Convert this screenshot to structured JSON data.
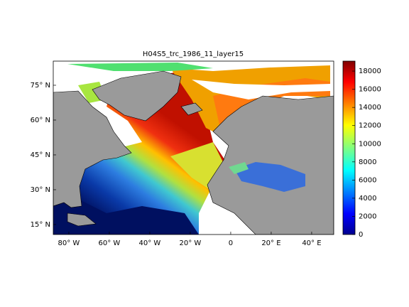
{
  "chart_data": {
    "type": "map",
    "title": "H04S5_trc_1986_11_layer15",
    "xlim": [
      -87.7,
      50.9
    ],
    "xticks": [
      {
        "value": -80,
        "label": "80° W"
      },
      {
        "value": -60,
        "label": "60° W"
      },
      {
        "value": -40,
        "label": "40° W"
      },
      {
        "value": -20,
        "label": "20° W"
      },
      0,
      {
        "value": 20,
        "label": "20° E"
      },
      {
        "value": 40,
        "label": "40° E"
      }
    ],
    "ylim": [
      10.7,
      85.4
    ],
    "yticks": [
      {
        "value": 15,
        "label": "15° N"
      },
      {
        "value": 30,
        "label": "30° N"
      },
      {
        "value": 45,
        "label": "45° N"
      },
      {
        "value": 60,
        "label": "60° N"
      },
      {
        "value": 75,
        "label": "75° N"
      }
    ],
    "colorbar": {
      "clim": [
        0,
        19100
      ],
      "ticks": [
        0,
        2000,
        4000,
        6000,
        8000,
        10000,
        12000,
        14000,
        16000,
        18000
      ]
    }
  }
}
